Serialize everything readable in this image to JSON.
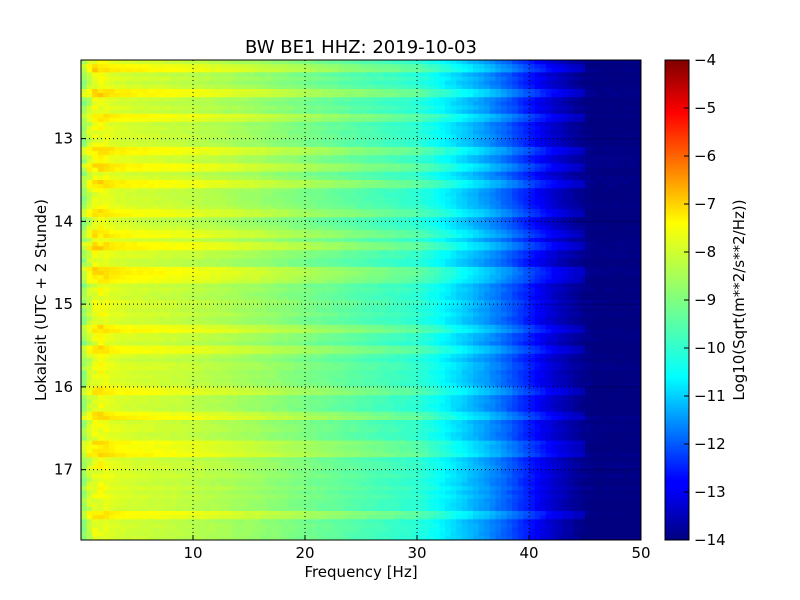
{
  "chart_data": {
    "type": "heatmap",
    "title": "BW BE1 HHZ: 2019-10-03",
    "xlabel": "Frequency [Hz]",
    "ylabel": "Lokalzeit (UTC + 2 Stunde)",
    "xlim": [
      0,
      50
    ],
    "ylim": [
      17.85,
      12.05
    ],
    "y_inverted": true,
    "x_ticks": [
      10,
      20,
      30,
      40,
      50
    ],
    "x_tick_labels": [
      "10",
      "20",
      "30",
      "40",
      "50"
    ],
    "y_ticks": [
      13,
      14,
      15,
      16,
      17
    ],
    "y_tick_labels": [
      "13",
      "14",
      "15",
      "16",
      "17"
    ],
    "grid": true,
    "colormap": "jet",
    "colorbar": {
      "label": "Log10(Sqrt(m**2/s**2/Hz))",
      "vmin": -14,
      "vmax": -4,
      "ticks": [
        -4,
        -5,
        -6,
        -7,
        -8,
        -9,
        -10,
        -11,
        -12,
        -13,
        -14
      ],
      "tick_labels": [
        "−4",
        "−5",
        "−6",
        "−7",
        "−8",
        "−9",
        "−10",
        "−11",
        "−12",
        "−13",
        "−14"
      ]
    },
    "spectrum_profile": {
      "frequency_hz": [
        0,
        1,
        2,
        3,
        5,
        8,
        12,
        16,
        20,
        24,
        28,
        30,
        32,
        34,
        36,
        38,
        40,
        42,
        44,
        45,
        46,
        50
      ],
      "log10_value": [
        -9.0,
        -8.0,
        -7.9,
        -8.1,
        -8.2,
        -8.3,
        -8.5,
        -8.75,
        -9.05,
        -9.35,
        -9.65,
        -9.8,
        -10.2,
        -10.7,
        -11.2,
        -11.8,
        -12.5,
        -13.2,
        -13.7,
        -13.9,
        -14.0,
        -14.0
      ]
    },
    "bright_bands_hours": [
      12.15,
      12.45,
      12.75,
      13.15,
      13.35,
      13.55,
      13.9,
      14.15,
      14.3,
      14.6,
      14.7,
      15.3,
      15.55,
      16.05,
      16.35,
      16.7,
      16.8,
      17.55
    ]
  }
}
